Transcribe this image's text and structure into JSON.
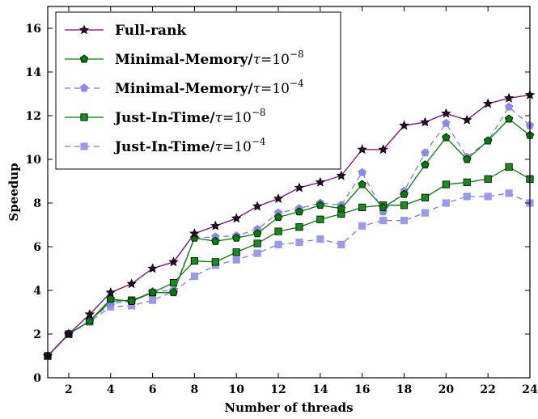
{
  "chart_data": {
    "type": "line",
    "xlabel": "Number of threads",
    "ylabel": "Speedup",
    "xlim": [
      1,
      24
    ],
    "ylim": [
      0,
      17
    ],
    "xticks": [
      2,
      4,
      6,
      8,
      10,
      12,
      14,
      16,
      18,
      20,
      22,
      24
    ],
    "yticks": [
      0,
      2,
      4,
      6,
      8,
      10,
      12,
      14,
      16
    ],
    "x": [
      1,
      2,
      3,
      4,
      5,
      6,
      7,
      8,
      9,
      10,
      11,
      12,
      13,
      14,
      15,
      16,
      17,
      18,
      19,
      20,
      21,
      22,
      23,
      24
    ],
    "legend_position": "top-left",
    "grid": false,
    "series": [
      {
        "name": "Full-rank",
        "label_main": "Full-rank",
        "label_exp": "",
        "color": "#800080",
        "linestyle": "solid",
        "marker": "star",
        "marker_fill": "#2e0a2e",
        "values": [
          1.0,
          2.0,
          2.9,
          3.9,
          4.3,
          5.0,
          5.3,
          6.6,
          6.95,
          7.3,
          7.85,
          8.2,
          8.7,
          8.95,
          9.25,
          10.45,
          10.45,
          11.55,
          11.7,
          12.1,
          11.8,
          12.55,
          12.8,
          12.95
        ]
      },
      {
        "name": "Minimal-Memory/τ=10^-8",
        "label_main": "Minimal-Memory/",
        "label_exp": "−8",
        "color": "#007f00",
        "linestyle": "solid",
        "marker": "pentagon",
        "marker_fill": "#007f00",
        "values": [
          1.0,
          2.0,
          2.6,
          3.6,
          3.5,
          3.9,
          3.9,
          6.4,
          6.25,
          6.4,
          6.6,
          7.35,
          7.6,
          7.9,
          7.75,
          8.85,
          7.8,
          8.4,
          9.75,
          11.0,
          10.0,
          10.85,
          11.85,
          11.1
        ]
      },
      {
        "name": "Minimal-Memory/τ=10^-4",
        "label_main": "Minimal-Memory/",
        "label_exp": "−4",
        "color": "#7b7be0",
        "linestyle": "dashed",
        "marker": "pentagon",
        "marker_fill": "#8a8ae8",
        "values": [
          1.0,
          2.0,
          2.6,
          3.4,
          3.5,
          3.95,
          4.0,
          6.4,
          6.45,
          6.5,
          6.8,
          7.55,
          7.75,
          8.0,
          7.9,
          9.4,
          7.6,
          8.55,
          10.3,
          11.65,
          10.1,
          10.85,
          12.4,
          11.55
        ]
      },
      {
        "name": "Just-In-Time/τ=10^-8",
        "label_main": "Just-In-Time/",
        "label_exp": "−8",
        "color": "#007f00",
        "linestyle": "solid",
        "marker": "square",
        "marker_fill": "#1a8c1a",
        "values": [
          1.0,
          2.0,
          2.6,
          3.5,
          3.55,
          3.9,
          4.35,
          5.35,
          5.3,
          5.75,
          6.15,
          6.7,
          6.9,
          7.25,
          7.5,
          7.8,
          7.9,
          7.9,
          8.25,
          8.85,
          8.95,
          9.1,
          9.65,
          9.1
        ]
      },
      {
        "name": "Just-In-Time/τ=10^-4",
        "label_main": "Just-In-Time/",
        "label_exp": "−4",
        "color": "#7b7be0",
        "linestyle": "dashed",
        "marker": "square",
        "marker_fill": "#9a9aea",
        "values": [
          1.0,
          2.0,
          2.55,
          3.25,
          3.3,
          3.55,
          3.95,
          4.65,
          5.15,
          5.4,
          5.7,
          6.1,
          6.2,
          6.35,
          6.1,
          6.95,
          7.2,
          7.2,
          7.55,
          8.0,
          8.3,
          8.3,
          8.45,
          8.0
        ]
      }
    ]
  }
}
